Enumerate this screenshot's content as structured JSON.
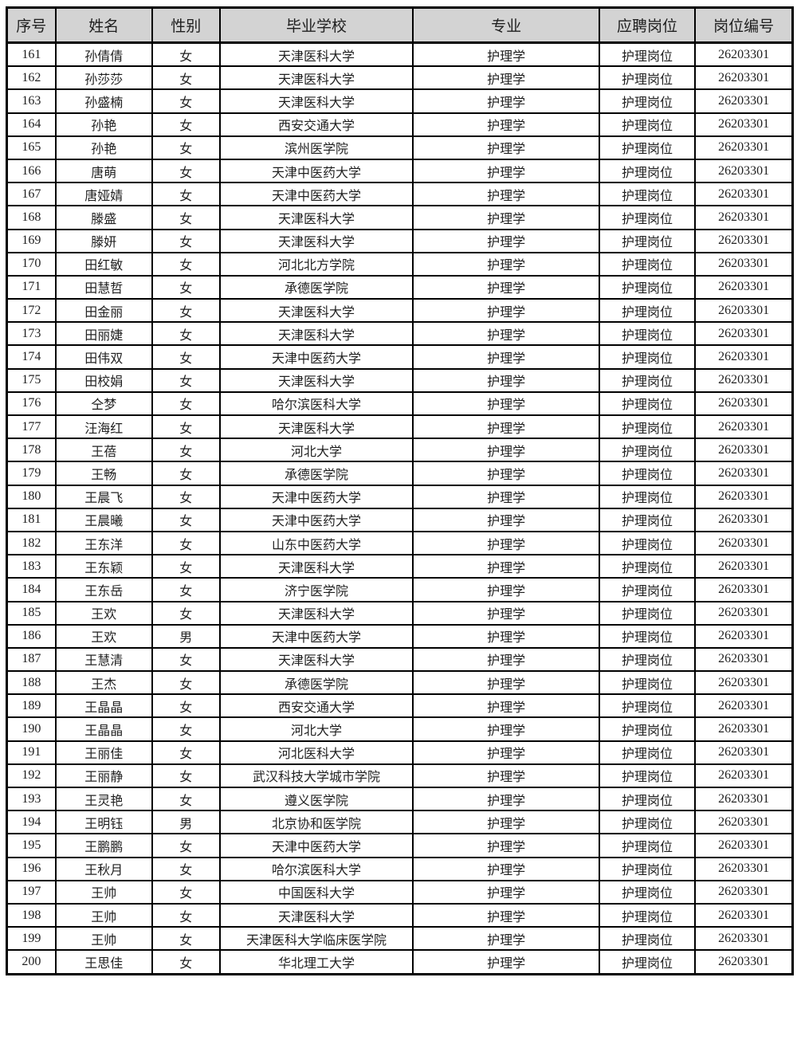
{
  "colors": {
    "header_bg": "#d3d3d3",
    "border": "#000000",
    "text": "#1f1f1f",
    "page_bg": "#ffffff"
  },
  "table": {
    "headers": [
      "序号",
      "姓名",
      "性别",
      "毕业学校",
      "专业",
      "应聘岗位",
      "岗位编号"
    ],
    "rows": [
      [
        "161",
        "孙倩倩",
        "女",
        "天津医科大学",
        "护理学",
        "护理岗位",
        "26203301"
      ],
      [
        "162",
        "孙莎莎",
        "女",
        "天津医科大学",
        "护理学",
        "护理岗位",
        "26203301"
      ],
      [
        "163",
        "孙盛楠",
        "女",
        "天津医科大学",
        "护理学",
        "护理岗位",
        "26203301"
      ],
      [
        "164",
        "孙艳",
        "女",
        "西安交通大学",
        "护理学",
        "护理岗位",
        "26203301"
      ],
      [
        "165",
        "孙艳",
        "女",
        "滨州医学院",
        "护理学",
        "护理岗位",
        "26203301"
      ],
      [
        "166",
        "唐萌",
        "女",
        "天津中医药大学",
        "护理学",
        "护理岗位",
        "26203301"
      ],
      [
        "167",
        "唐娅婧",
        "女",
        "天津中医药大学",
        "护理学",
        "护理岗位",
        "26203301"
      ],
      [
        "168",
        "滕盛",
        "女",
        "天津医科大学",
        "护理学",
        "护理岗位",
        "26203301"
      ],
      [
        "169",
        "滕妍",
        "女",
        "天津医科大学",
        "护理学",
        "护理岗位",
        "26203301"
      ],
      [
        "170",
        "田红敏",
        "女",
        "河北北方学院",
        "护理学",
        "护理岗位",
        "26203301"
      ],
      [
        "171",
        "田慧哲",
        "女",
        "承德医学院",
        "护理学",
        "护理岗位",
        "26203301"
      ],
      [
        "172",
        "田金丽",
        "女",
        "天津医科大学",
        "护理学",
        "护理岗位",
        "26203301"
      ],
      [
        "173",
        "田丽婕",
        "女",
        "天津医科大学",
        "护理学",
        "护理岗位",
        "26203301"
      ],
      [
        "174",
        "田伟双",
        "女",
        "天津中医药大学",
        "护理学",
        "护理岗位",
        "26203301"
      ],
      [
        "175",
        "田校娟",
        "女",
        "天津医科大学",
        "护理学",
        "护理岗位",
        "26203301"
      ],
      [
        "176",
        "仝梦",
        "女",
        "哈尔滨医科大学",
        "护理学",
        "护理岗位",
        "26203301"
      ],
      [
        "177",
        "汪海红",
        "女",
        "天津医科大学",
        "护理学",
        "护理岗位",
        "26203301"
      ],
      [
        "178",
        "王蓓",
        "女",
        "河北大学",
        "护理学",
        "护理岗位",
        "26203301"
      ],
      [
        "179",
        "王畅",
        "女",
        "承德医学院",
        "护理学",
        "护理岗位",
        "26203301"
      ],
      [
        "180",
        "王晨飞",
        "女",
        "天津中医药大学",
        "护理学",
        "护理岗位",
        "26203301"
      ],
      [
        "181",
        "王晨曦",
        "女",
        "天津中医药大学",
        "护理学",
        "护理岗位",
        "26203301"
      ],
      [
        "182",
        "王东洋",
        "女",
        "山东中医药大学",
        "护理学",
        "护理岗位",
        "26203301"
      ],
      [
        "183",
        "王东颖",
        "女",
        "天津医科大学",
        "护理学",
        "护理岗位",
        "26203301"
      ],
      [
        "184",
        "王东岳",
        "女",
        "济宁医学院",
        "护理学",
        "护理岗位",
        "26203301"
      ],
      [
        "185",
        "王欢",
        "女",
        "天津医科大学",
        "护理学",
        "护理岗位",
        "26203301"
      ],
      [
        "186",
        "王欢",
        "男",
        "天津中医药大学",
        "护理学",
        "护理岗位",
        "26203301"
      ],
      [
        "187",
        "王慧清",
        "女",
        "天津医科大学",
        "护理学",
        "护理岗位",
        "26203301"
      ],
      [
        "188",
        "王杰",
        "女",
        "承德医学院",
        "护理学",
        "护理岗位",
        "26203301"
      ],
      [
        "189",
        "王晶晶",
        "女",
        "西安交通大学",
        "护理学",
        "护理岗位",
        "26203301"
      ],
      [
        "190",
        "王晶晶",
        "女",
        "河北大学",
        "护理学",
        "护理岗位",
        "26203301"
      ],
      [
        "191",
        "王丽佳",
        "女",
        "河北医科大学",
        "护理学",
        "护理岗位",
        "26203301"
      ],
      [
        "192",
        "王丽静",
        "女",
        "武汉科技大学城市学院",
        "护理学",
        "护理岗位",
        "26203301"
      ],
      [
        "193",
        "王灵艳",
        "女",
        "遵义医学院",
        "护理学",
        "护理岗位",
        "26203301"
      ],
      [
        "194",
        "王明钰",
        "男",
        "北京协和医学院",
        "护理学",
        "护理岗位",
        "26203301"
      ],
      [
        "195",
        "王鹏鹏",
        "女",
        "天津中医药大学",
        "护理学",
        "护理岗位",
        "26203301"
      ],
      [
        "196",
        "王秋月",
        "女",
        "哈尔滨医科大学",
        "护理学",
        "护理岗位",
        "26203301"
      ],
      [
        "197",
        "王帅",
        "女",
        "中国医科大学",
        "护理学",
        "护理岗位",
        "26203301"
      ],
      [
        "198",
        "王帅",
        "女",
        "天津医科大学",
        "护理学",
        "护理岗位",
        "26203301"
      ],
      [
        "199",
        "王帅",
        "女",
        "天津医科大学临床医学院",
        "护理学",
        "护理岗位",
        "26203301"
      ],
      [
        "200",
        "王思佳",
        "女",
        "华北理工大学",
        "护理学",
        "护理岗位",
        "26203301"
      ]
    ]
  }
}
